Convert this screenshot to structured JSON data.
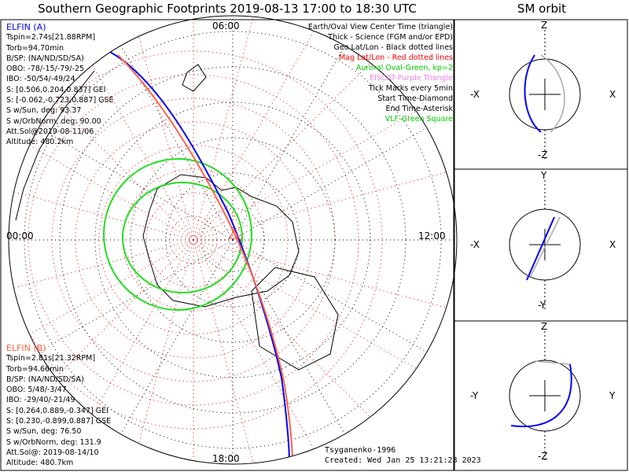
{
  "title": "Southern Geographic Footprints 2019-08-13 17:00 to 18:30 UTC",
  "sm_title": "SM orbit",
  "map_labels": {
    "top": "06:00",
    "bottom": "18:00",
    "left": "00:00",
    "right": "12:00"
  },
  "legend": [
    {
      "text": "Earth/Oval View Center Time (triangle)",
      "color": "#000000"
    },
    {
      "text": "Thick - Science (FGM and/or EPD)",
      "color": "#000000"
    },
    {
      "text": "Geo Lat/Lon - Black dotted lines",
      "color": "#000000"
    },
    {
      "text": "Mag Lat/Lon - Red dotted lines",
      "color": "#ff0000"
    },
    {
      "text": "Auroral Oval-Green, kp=2",
      "color": "#00cc00"
    },
    {
      "text": "EISCAT-Purple Triangle",
      "color": "#ee82ee"
    },
    {
      "text": "Tick Marks every 5min",
      "color": "#000000"
    },
    {
      "text": "Start Time-Diamond",
      "color": "#000000"
    },
    {
      "text": "End Time-Asterisk",
      "color": "#000000"
    },
    {
      "text": "VLF-Green Square",
      "color": "#00cc00"
    }
  ],
  "elfin_a": {
    "name": "ELFIN (A)",
    "color": "#0000ff",
    "lines": [
      "Tspin=2.74s[21.88RPM]",
      "Torb=94.70min",
      "B/SP: (NA/ND/SD/SA)",
      "OBO: -78/-15/-79/-25",
      "IBO: -50/54/-49/24",
      "S: [0.506,0.204,0.837] GEI",
      "S: [-0.062,-0.723,0.887] GSE",
      "S w/Sun, deg: 93.37",
      "S w/OrbNorm, deg: 90.00",
      "Att.Sol@2019-08-11/06",
      "Altitude: 480.2km"
    ]
  },
  "elfin_b": {
    "name": "ELFIN (B)",
    "color": "#ff6347",
    "lines": [
      "Tspin=2.81s[21.32RPM]",
      "Torb=94.66min",
      "B/SP: (NA/ND/SD/SA)",
      "OBO: 5/48/-3/47",
      "IBO: -29/40/-21/49",
      "S: [0.264,0.889,-0.347] GEI",
      "S: [0.230,-0.899,0.887] GSE",
      "S w/Sun, deg: 76.50",
      "S w/OrbNorm, deg: 131.9",
      "Att.Sol@: 2019-08-14/10",
      "Altitude: 480.7km"
    ]
  },
  "footer": {
    "model": "Tsyganenko-1996",
    "created": "Created: Wed Jan 25 13:21:28 2023"
  },
  "sm_panels": [
    {
      "top": "Z",
      "bottom": "-Z",
      "left": "-X",
      "right": "X"
    },
    {
      "top": "Y",
      "bottom": "-Y",
      "left": "-X",
      "right": "X"
    },
    {
      "top": "Z",
      "bottom": "-Z",
      "left": "-Y",
      "right": "Y"
    }
  ],
  "chart_data": {
    "type": "polar-map",
    "title": "Southern Geographic Footprints 2019-08-13 17:00 to 18:30 UTC",
    "mlt_labels": [
      "00:00",
      "06:00",
      "12:00",
      "18:00"
    ],
    "series": [
      {
        "name": "ELFIN (A)",
        "color": "#0000ff"
      },
      {
        "name": "ELFIN (B)",
        "color": "#ff6347"
      }
    ]
  }
}
